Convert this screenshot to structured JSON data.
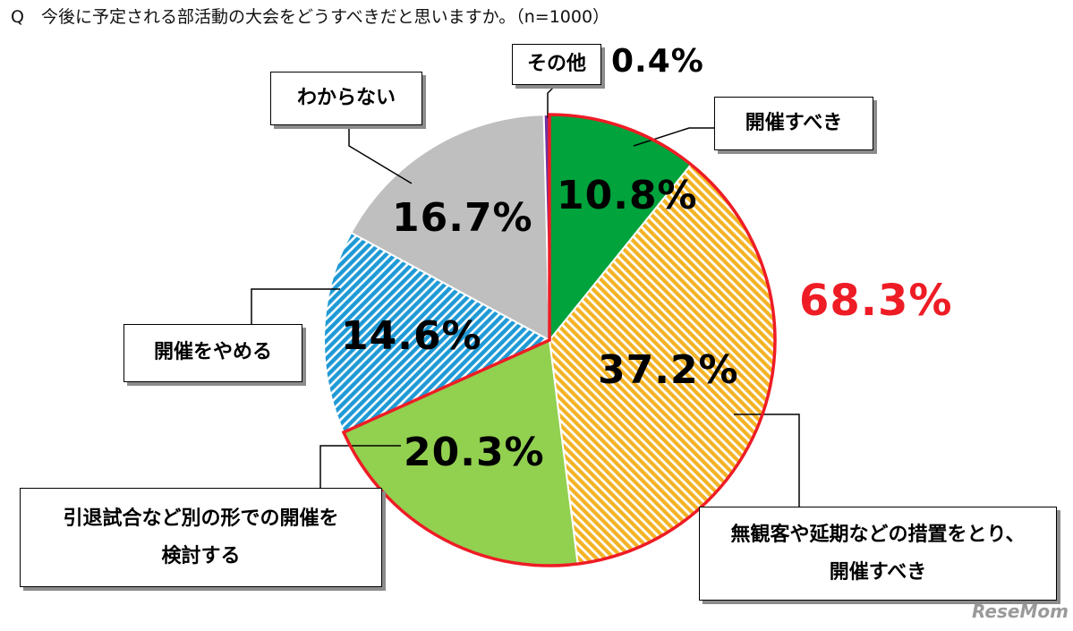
{
  "question": "Q　今後に予定される部活動の大会をどうすべきだと思いますか。（n=1000）",
  "total_highlight": "68.3%",
  "brand": "ReseMom",
  "colors": {
    "hold": "#00a33c",
    "hold_with_measures": "#f4b325",
    "alternative_form": "#92d050",
    "cancel": "#1f9ad6",
    "unknown": "#bfbfbf",
    "other": "#7030a0",
    "highlight": "#ee1c25"
  },
  "chart_data": {
    "type": "pie",
    "title": "今後に予定される部活動の大会をどうすべきだと思いますか。",
    "n": 1000,
    "slices": [
      {
        "label": "開催すべき",
        "value": 10.8,
        "value_label": "10.8%",
        "pattern": "solid",
        "highlighted": true
      },
      {
        "label": "無観客や延期などの措置をとり、開催すべき",
        "value": 37.2,
        "value_label": "37.2%",
        "pattern": "hatched",
        "highlighted": true
      },
      {
        "label": "引退試合など別の形での開催を検討する",
        "value": 20.3,
        "value_label": "20.3%",
        "pattern": "solid",
        "highlighted": true
      },
      {
        "label": "開催をやめる",
        "value": 14.6,
        "value_label": "14.6%",
        "pattern": "hatched",
        "highlighted": false
      },
      {
        "label": "わからない",
        "value": 16.7,
        "value_label": "16.7%",
        "pattern": "solid",
        "highlighted": false
      },
      {
        "label": "その他",
        "value": 0.4,
        "value_label": "0.4%",
        "pattern": "solid",
        "highlighted": false
      }
    ],
    "highlight_total": 68.3,
    "start_angle": "12 o'clock",
    "direction": "clockwise"
  }
}
